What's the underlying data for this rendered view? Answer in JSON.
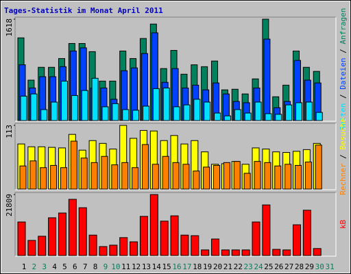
{
  "title": "Tages-Statistik im Monat April 2011",
  "title_color": "#0000c0",
  "legend_separator": " / ",
  "chart_data": [
    {
      "type": "bar",
      "ylim": [
        0,
        1618
      ],
      "yticks": [
        1618
      ],
      "series": [
        {
          "name": "Anfragen",
          "color": "#00805c",
          "values": [
            1320,
            645,
            850,
            850,
            990,
            1230,
            1230,
            1100,
            630,
            630,
            1110,
            990,
            1310,
            1540,
            830,
            1120,
            740,
            890,
            860,
            950,
            490,
            500,
            425,
            665,
            1618,
            380,
            565,
            1110,
            850,
            785,
            null
          ]
        },
        {
          "name": "Dateien",
          "color": "#0040ff",
          "values": [
            890,
            520,
            700,
            700,
            860,
            1110,
            1160,
            520,
            520,
            340,
            795,
            840,
            1070,
            1400,
            610,
            830,
            520,
            565,
            490,
            600,
            425,
            305,
            285,
            520,
            1300,
            205,
            305,
            960,
            645,
            600,
            null
          ]
        },
        {
          "name": "Seiten",
          "color": "#00e0ff",
          "values": [
            390,
            425,
            175,
            295,
            630,
            400,
            480,
            675,
            220,
            270,
            175,
            165,
            230,
            510,
            520,
            220,
            250,
            340,
            295,
            120,
            75,
            175,
            120,
            295,
            110,
            100,
            250,
            285,
            295,
            130,
            null
          ]
        }
      ]
    },
    {
      "type": "bar",
      "ylim": [
        0,
        113
      ],
      "yticks": [
        113
      ],
      "series": [
        {
          "name": "Besuche",
          "color": "#ffff00",
          "values": [
            80,
            75,
            75,
            74,
            73,
            97,
            69,
            86,
            81,
            71,
            113,
            90,
            104,
            103,
            86,
            95,
            80,
            86,
            66,
            44,
            45,
            49,
            44,
            73,
            71,
            66,
            65,
            67,
            70,
            81,
            null
          ]
        },
        {
          "name": "Rechner",
          "color": "#ff8000",
          "values": [
            41,
            50,
            38,
            42,
            38,
            85,
            55,
            47,
            58,
            43,
            47,
            38,
            79,
            44,
            58,
            47,
            44,
            32,
            39,
            42,
            47,
            49,
            28,
            49,
            47,
            41,
            44,
            42,
            48,
            78,
            null
          ]
        }
      ]
    },
    {
      "type": "bar",
      "ylim": [
        0,
        21809
      ],
      "yticks": [
        21809
      ],
      "categories": [
        "1",
        "2",
        "3",
        "4",
        "5",
        "6",
        "7",
        "8",
        "9",
        "10",
        "11",
        "12",
        "13",
        "14",
        "15",
        "16",
        "17",
        "18",
        "19",
        "20",
        "21",
        "22",
        "23",
        "24",
        "25",
        "26",
        "27",
        "28",
        "29",
        "30",
        "31"
      ],
      "label_colors": [
        "#000000",
        "#00805c",
        "#00805c",
        "#000000",
        "#000000",
        "#000000",
        "#000000",
        "#000000",
        "#00805c",
        "#00805c",
        "#000000",
        "#000000",
        "#000000",
        "#000000",
        "#000000",
        "#00805c",
        "#00805c",
        "#000000",
        "#000000",
        "#000000",
        "#000000",
        "#000000",
        "#00805c",
        "#00805c",
        "#000000",
        "#000000",
        "#000000",
        "#000000",
        "#000000",
        "#00805c",
        "#00805c"
      ],
      "series": [
        {
          "name": "kB",
          "color": "#ff0000",
          "values": [
            12000,
            5400,
            6900,
            13500,
            15200,
            20100,
            17100,
            7300,
            3200,
            3700,
            6400,
            4900,
            14000,
            21809,
            12300,
            14200,
            7300,
            7100,
            2000,
            5900,
            2000,
            2000,
            2000,
            12000,
            18100,
            2200,
            2000,
            11000,
            16200,
            2500,
            null
          ]
        }
      ]
    }
  ]
}
